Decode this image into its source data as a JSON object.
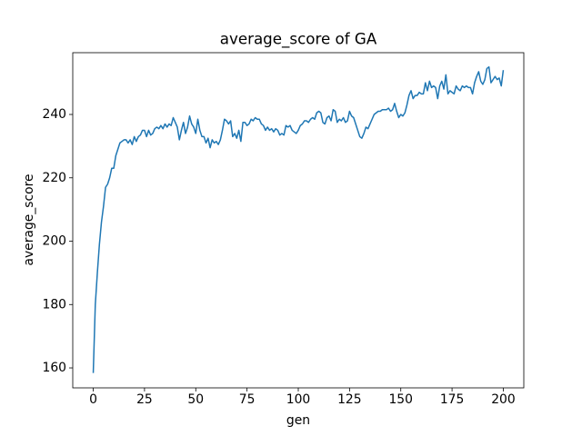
{
  "chart_data": {
    "type": "line",
    "title": "average_score of GA",
    "x_label": "gen",
    "y_label": "average_score",
    "color": "#1f77b4",
    "x": [
      0,
      1,
      2,
      3,
      4,
      5,
      6,
      7,
      8,
      9,
      10,
      11,
      12,
      13,
      14,
      15,
      16,
      17,
      18,
      19,
      20,
      21,
      22,
      23,
      24,
      25,
      26,
      27,
      28,
      29,
      30,
      31,
      32,
      33,
      34,
      35,
      36,
      37,
      38,
      39,
      40,
      41,
      42,
      43,
      44,
      45,
      46,
      47,
      48,
      49,
      50,
      51,
      52,
      53,
      54,
      55,
      56,
      57,
      58,
      59,
      60,
      61,
      62,
      63,
      64,
      65,
      66,
      67,
      68,
      69,
      70,
      71,
      72,
      73,
      74,
      75,
      76,
      77,
      78,
      79,
      80,
      81,
      82,
      83,
      84,
      85,
      86,
      87,
      88,
      89,
      90,
      91,
      92,
      93,
      94,
      95,
      96,
      97,
      98,
      99,
      100,
      101,
      102,
      103,
      104,
      105,
      106,
      107,
      108,
      109,
      110,
      111,
      112,
      113,
      114,
      115,
      116,
      117,
      118,
      119,
      120,
      121,
      122,
      123,
      124,
      125,
      126,
      127,
      128,
      129,
      130,
      131,
      132,
      133,
      134,
      135,
      136,
      137,
      138,
      139,
      140,
      141,
      142,
      143,
      144,
      145,
      146,
      147,
      148,
      149,
      150,
      151,
      152,
      153,
      154,
      155,
      156,
      157,
      158,
      159,
      160,
      161,
      162,
      163,
      164,
      165,
      166,
      167,
      168,
      169,
      170,
      171,
      172,
      173,
      174,
      175,
      176,
      177,
      178,
      179,
      180,
      181,
      182,
      183,
      184,
      185,
      186,
      187,
      188,
      189,
      190,
      191,
      192,
      193,
      194,
      195,
      196,
      197,
      198,
      199,
      200
    ],
    "values": [
      158.4,
      180,
      190,
      199,
      206,
      211,
      217,
      218,
      220,
      223,
      223,
      227,
      229,
      231,
      231.5,
      232,
      232,
      231,
      232,
      230.5,
      233,
      231.5,
      233,
      233.5,
      235,
      235,
      233,
      235,
      233.5,
      234,
      235.5,
      236,
      235.5,
      236.5,
      235.5,
      237,
      236,
      237,
      236.5,
      239,
      237.5,
      236,
      232,
      235,
      237.5,
      234,
      236,
      239.5,
      237,
      236,
      234,
      238.5,
      235,
      233,
      233,
      231,
      232.5,
      229.5,
      232,
      231,
      231.5,
      230.5,
      232,
      235,
      238.5,
      238,
      237,
      238,
      233,
      234,
      232.5,
      235,
      231.5,
      237.5,
      237.5,
      236.5,
      237,
      238.5,
      238,
      239,
      238.5,
      238.5,
      237,
      236.5,
      235,
      236,
      235,
      235.5,
      234.5,
      235.5,
      235,
      233.5,
      234,
      233.5,
      236.5,
      236,
      236.5,
      235,
      234.5,
      234,
      235,
      236.5,
      237,
      238,
      238,
      237.5,
      238.5,
      239,
      238.5,
      240.5,
      241,
      240.5,
      237.5,
      237,
      239,
      239.5,
      238,
      241.5,
      241,
      237.5,
      238.5,
      238,
      239,
      237.5,
      238,
      241,
      239.5,
      239,
      237,
      235,
      233,
      232.5,
      234,
      236,
      235.5,
      237,
      238.5,
      240,
      240.5,
      241,
      241,
      241.5,
      241.5,
      241.5,
      242,
      241,
      241.5,
      243.5,
      241,
      239,
      240,
      239.5,
      240.5,
      243,
      246,
      247.5,
      245,
      246,
      246,
      247,
      246.5,
      246.5,
      250,
      247.5,
      250.5,
      248.5,
      249,
      248.5,
      245,
      249,
      250.5,
      248,
      252.5,
      246.5,
      247.5,
      247,
      246.5,
      249,
      248,
      247.5,
      249,
      248.5,
      249,
      248.5,
      248.5,
      246.5,
      250,
      252,
      253.5,
      250.5,
      249.5,
      251,
      254.5,
      255,
      250,
      251,
      252,
      251,
      251.5,
      249,
      254
    ],
    "xlim": [
      -10,
      210
    ],
    "ylim": [
      153.7,
      259.5
    ],
    "xticks": [
      0,
      25,
      50,
      75,
      100,
      125,
      150,
      175,
      200
    ],
    "yticks": [
      160,
      180,
      200,
      220,
      240
    ]
  }
}
